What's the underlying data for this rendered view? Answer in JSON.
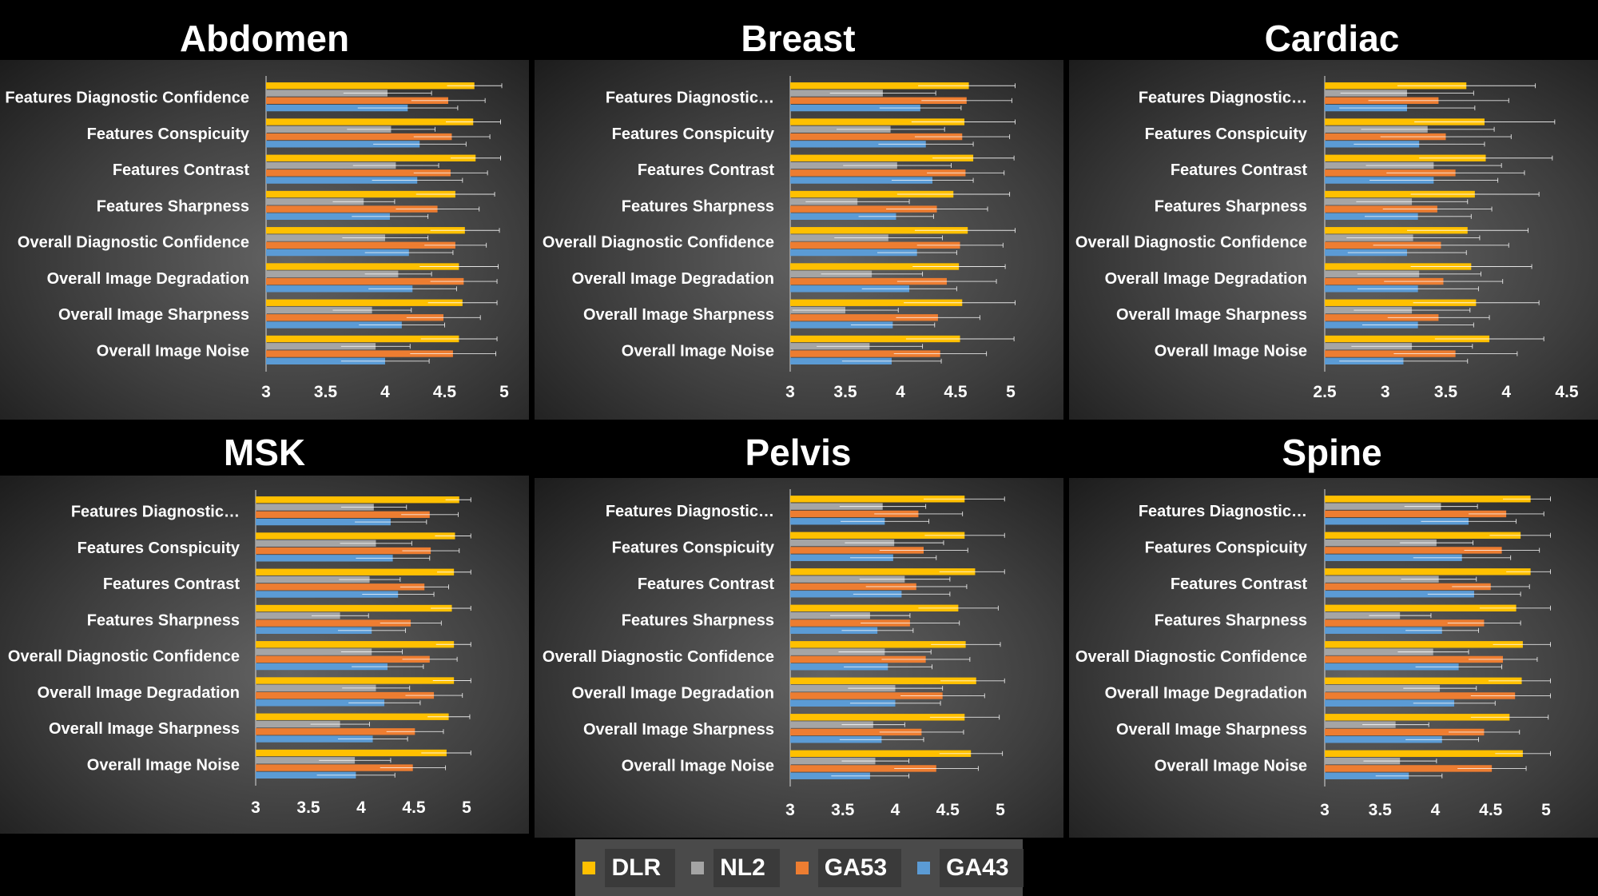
{
  "legend": [
    {
      "name": "DLR",
      "color": "#ffc000"
    },
    {
      "name": "NL2",
      "color": "#a5a5a5"
    },
    {
      "name": "GA53",
      "color": "#ed7d31"
    },
    {
      "name": "GA43",
      "color": "#5b9bd5"
    }
  ],
  "chart_data": [
    {
      "type": "bar",
      "title": "Abdomen",
      "categories": [
        "Features Diagnostic Confidence",
        "Features Conspicuity",
        "Features Contrast",
        "Features Sharpness",
        "Overall Diagnostic Confidence",
        "Overall Image Degradation",
        "Overall Image Sharpness",
        "Overall Image Noise"
      ],
      "xlim": [
        3,
        5
      ],
      "ticks": [
        3,
        3.5,
        4,
        4.5,
        5
      ],
      "tick_labels": [
        "3",
        "3.5",
        "4",
        "4.5",
        "5"
      ],
      "series": [
        {
          "name": "DLR",
          "values": [
            4.75,
            4.74,
            4.76,
            4.59,
            4.67,
            4.62,
            4.65,
            4.62
          ],
          "errors": [
            0.23,
            0.23,
            0.21,
            0.33,
            0.29,
            0.33,
            0.29,
            0.32
          ]
        },
        {
          "name": "NL2",
          "values": [
            4.02,
            4.05,
            4.09,
            3.82,
            4.0,
            4.11,
            3.89,
            3.92
          ],
          "errors": [
            0.37,
            0.37,
            0.36,
            0.26,
            0.36,
            0.28,
            0.33,
            0.29
          ]
        },
        {
          "name": "GA53",
          "values": [
            4.53,
            4.56,
            4.55,
            4.44,
            4.59,
            4.66,
            4.49,
            4.57
          ],
          "errors": [
            0.31,
            0.32,
            0.31,
            0.35,
            0.26,
            0.28,
            0.31,
            0.36
          ]
        },
        {
          "name": "GA43",
          "values": [
            4.19,
            4.29,
            4.27,
            4.04,
            4.2,
            4.23,
            4.14,
            4.0
          ],
          "errors": [
            0.42,
            0.39,
            0.38,
            0.32,
            0.37,
            0.37,
            0.36,
            0.37
          ]
        }
      ]
    },
    {
      "type": "bar",
      "title": "Breast",
      "categories": [
        "Features Diagnostic…",
        "Features Conspicuity",
        "Features Contrast",
        "Features Sharpness",
        "Overall Diagnostic Confidence",
        "Overall Image Degradation",
        "Overall Image Sharpness",
        "Overall Image Noise"
      ],
      "xlim": [
        3,
        5
      ],
      "ticks": [
        3,
        3.5,
        4,
        4.5,
        5
      ],
      "tick_labels": [
        "3",
        "3.5",
        "4",
        "4.5",
        "5"
      ],
      "series": [
        {
          "name": "DLR",
          "values": [
            4.62,
            4.58,
            4.66,
            4.48,
            4.61,
            4.53,
            4.56,
            4.54
          ],
          "errors": [
            0.46,
            0.48,
            0.37,
            0.51,
            0.48,
            0.42,
            0.53,
            0.49
          ]
        },
        {
          "name": "NL2",
          "values": [
            3.84,
            3.91,
            3.97,
            3.61,
            3.89,
            3.74,
            3.5,
            3.72
          ],
          "errors": [
            0.48,
            0.49,
            0.49,
            0.47,
            0.49,
            0.46,
            0.48,
            0.48
          ]
        },
        {
          "name": "GA53",
          "values": [
            4.6,
            4.56,
            4.59,
            4.33,
            4.54,
            4.42,
            4.34,
            4.36
          ],
          "errors": [
            0.41,
            0.43,
            0.35,
            0.46,
            0.39,
            0.45,
            0.38,
            0.42
          ]
        },
        {
          "name": "GA43",
          "values": [
            4.18,
            4.23,
            4.29,
            3.96,
            4.15,
            4.08,
            3.93,
            3.92
          ],
          "errors": [
            0.37,
            0.43,
            0.37,
            0.34,
            0.36,
            0.43,
            0.38,
            0.45
          ]
        }
      ]
    },
    {
      "type": "bar",
      "title": "Cardiac",
      "categories": [
        "Features Diagnostic…",
        "Features Conspicuity",
        "Features Contrast",
        "Features Sharpness",
        "Overall Diagnostic Confidence",
        "Overall Image Degradation",
        "Overall Image Sharpness",
        "Overall Image Noise"
      ],
      "xlim": [
        2.5,
        4.5
      ],
      "ticks": [
        2.5,
        3,
        3.5,
        4,
        4.5
      ],
      "tick_labels": [
        "2.5",
        "3",
        "3.5",
        "4",
        "4.5"
      ],
      "series": [
        {
          "name": "DLR",
          "values": [
            3.67,
            3.82,
            3.83,
            3.74,
            3.68,
            3.71,
            3.75,
            3.86
          ],
          "errors": [
            0.57,
            0.58,
            0.55,
            0.53,
            0.5,
            0.5,
            0.52,
            0.45
          ]
        },
        {
          "name": "NL2",
          "values": [
            3.18,
            3.35,
            3.4,
            3.22,
            3.23,
            3.28,
            3.22,
            3.22
          ],
          "errors": [
            0.55,
            0.55,
            0.56,
            0.46,
            0.55,
            0.51,
            0.48,
            0.5
          ]
        },
        {
          "name": "GA53",
          "values": [
            3.44,
            3.5,
            3.58,
            3.43,
            3.46,
            3.48,
            3.44,
            3.58
          ],
          "errors": [
            0.58,
            0.54,
            0.57,
            0.45,
            0.56,
            0.49,
            0.42,
            0.51
          ]
        },
        {
          "name": "GA43",
          "values": [
            3.18,
            3.28,
            3.4,
            3.27,
            3.18,
            3.27,
            3.27,
            3.15
          ],
          "errors": [
            0.56,
            0.54,
            0.53,
            0.44,
            0.49,
            0.5,
            0.46,
            0.53
          ]
        }
      ]
    },
    {
      "type": "bar",
      "title": "MSK",
      "categories": [
        "Features Diagnostic…",
        "Features Conspicuity",
        "Features Contrast",
        "Features Sharpness",
        "Overall Diagnostic Confidence",
        "Overall Image Degradation",
        "Overall Image Sharpness",
        "Overall Image Noise"
      ],
      "xlim": [
        3,
        5
      ],
      "ticks": [
        3,
        3.5,
        4,
        4.5,
        5
      ],
      "tick_labels": [
        "3",
        "3.5",
        "4",
        "4.5",
        "5"
      ],
      "series": [
        {
          "name": "DLR",
          "values": [
            4.93,
            4.89,
            4.88,
            4.86,
            4.88,
            4.88,
            4.83,
            4.81
          ],
          "errors": [
            0.13,
            0.19,
            0.16,
            0.2,
            0.17,
            0.2,
            0.2,
            0.24
          ]
        },
        {
          "name": "NL2",
          "values": [
            4.12,
            4.14,
            4.08,
            3.8,
            4.1,
            4.14,
            3.8,
            3.94
          ],
          "errors": [
            0.31,
            0.34,
            0.29,
            0.27,
            0.29,
            0.32,
            0.28,
            0.34
          ]
        },
        {
          "name": "GA53",
          "values": [
            4.65,
            4.66,
            4.6,
            4.47,
            4.65,
            4.69,
            4.51,
            4.49
          ],
          "errors": [
            0.27,
            0.27,
            0.23,
            0.29,
            0.26,
            0.27,
            0.27,
            0.31
          ]
        },
        {
          "name": "GA43",
          "values": [
            4.28,
            4.3,
            4.35,
            4.1,
            4.25,
            4.22,
            4.11,
            3.95
          ],
          "errors": [
            0.34,
            0.35,
            0.34,
            0.32,
            0.34,
            0.34,
            0.33,
            0.37
          ]
        }
      ]
    },
    {
      "type": "bar",
      "title": "Pelvis",
      "categories": [
        "Features Diagnostic…",
        "Features Conspicuity",
        "Features Contrast",
        "Features Sharpness",
        "Overall Diagnostic Confidence",
        "Overall Image Degradation",
        "Overall Image Sharpness",
        "Overall Image Noise"
      ],
      "xlim": [
        3,
        5
      ],
      "ticks": [
        3,
        3.5,
        4,
        4.5,
        5
      ],
      "tick_labels": [
        "3",
        "3.5",
        "4",
        "4.5",
        "5"
      ],
      "series": [
        {
          "name": "DLR",
          "values": [
            4.66,
            4.66,
            4.76,
            4.6,
            4.67,
            4.77,
            4.66,
            4.72
          ],
          "errors": [
            0.39,
            0.38,
            0.34,
            0.38,
            0.33,
            0.34,
            0.33,
            0.3
          ]
        },
        {
          "name": "NL2",
          "values": [
            3.88,
            3.99,
            4.09,
            3.76,
            3.9,
            4.0,
            3.79,
            3.81
          ],
          "errors": [
            0.41,
            0.47,
            0.43,
            0.38,
            0.44,
            0.45,
            0.3,
            0.32
          ]
        },
        {
          "name": "GA53",
          "values": [
            4.22,
            4.27,
            4.2,
            4.14,
            4.29,
            4.45,
            4.25,
            4.39
          ],
          "errors": [
            0.42,
            0.42,
            0.48,
            0.47,
            0.42,
            0.4,
            0.4,
            0.4
          ]
        },
        {
          "name": "GA43",
          "values": [
            3.9,
            3.98,
            4.06,
            3.83,
            3.93,
            4.0,
            3.87,
            3.76
          ],
          "errors": [
            0.42,
            0.41,
            0.46,
            0.34,
            0.42,
            0.43,
            0.4,
            0.37
          ]
        }
      ]
    },
    {
      "type": "bar",
      "title": "Spine",
      "categories": [
        "Features Diagnostic…",
        "Features Conspicuity",
        "Features Contrast",
        "Features Sharpness",
        "Overall Diagnostic Confidence",
        "Overall Image Degradation",
        "Overall Image Sharpness",
        "Overall Image Noise"
      ],
      "xlim": [
        3,
        5
      ],
      "ticks": [
        3,
        3.5,
        4,
        4.5,
        5
      ],
      "tick_labels": [
        "3",
        "3.5",
        "4",
        "4.5",
        "5"
      ],
      "series": [
        {
          "name": "DLR",
          "values": [
            4.86,
            4.77,
            4.86,
            4.73,
            4.79,
            4.78,
            4.67,
            4.79
          ],
          "errors": [
            0.25,
            0.28,
            0.22,
            0.33,
            0.27,
            0.3,
            0.35,
            0.25
          ]
        },
        {
          "name": "NL2",
          "values": [
            4.05,
            4.01,
            4.03,
            3.68,
            3.98,
            4.04,
            3.64,
            3.68
          ],
          "errors": [
            0.33,
            0.33,
            0.34,
            0.28,
            0.32,
            0.33,
            0.3,
            0.33
          ]
        },
        {
          "name": "GA53",
          "values": [
            4.64,
            4.6,
            4.5,
            4.44,
            4.61,
            4.72,
            4.44,
            4.51
          ],
          "errors": [
            0.34,
            0.34,
            0.35,
            0.33,
            0.31,
            0.4,
            0.32,
            0.31
          ]
        },
        {
          "name": "GA43",
          "values": [
            4.3,
            4.24,
            4.35,
            4.06,
            4.21,
            4.17,
            4.06,
            3.76
          ],
          "errors": [
            0.43,
            0.44,
            0.42,
            0.33,
            0.39,
            0.37,
            0.33,
            0.3
          ]
        }
      ]
    }
  ]
}
